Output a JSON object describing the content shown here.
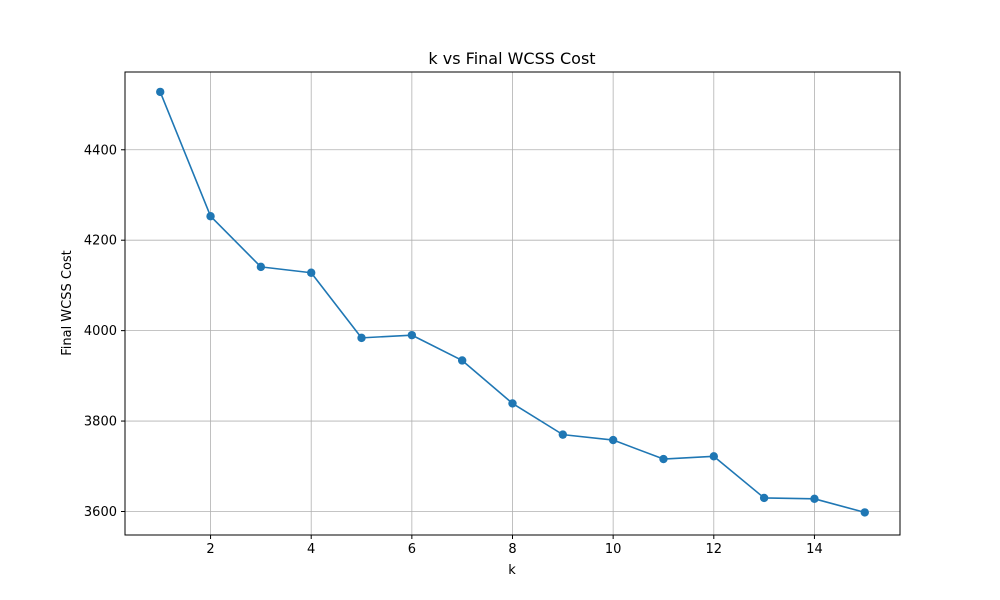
{
  "chart_data": {
    "type": "line",
    "title": "k vs Final WCSS Cost",
    "xlabel": "k",
    "ylabel": "Final WCSS Cost",
    "x": [
      1,
      2,
      3,
      4,
      5,
      6,
      7,
      8,
      9,
      10,
      11,
      12,
      13,
      14,
      15
    ],
    "series": [
      {
        "values": [
          4528,
          4253,
          4141,
          4128,
          3984,
          3990,
          3934,
          3839,
          3770,
          3758,
          3716,
          3722,
          3630,
          3628,
          3598
        ],
        "color": "#1f77b4",
        "marker": "circle"
      }
    ],
    "xlim": [
      0.3,
      15.7
    ],
    "ylim": [
      3548,
      4572
    ],
    "xticks": [
      2,
      4,
      6,
      8,
      10,
      12,
      14
    ],
    "yticks": [
      3600,
      3800,
      4000,
      4200,
      4400
    ],
    "grid": true
  }
}
